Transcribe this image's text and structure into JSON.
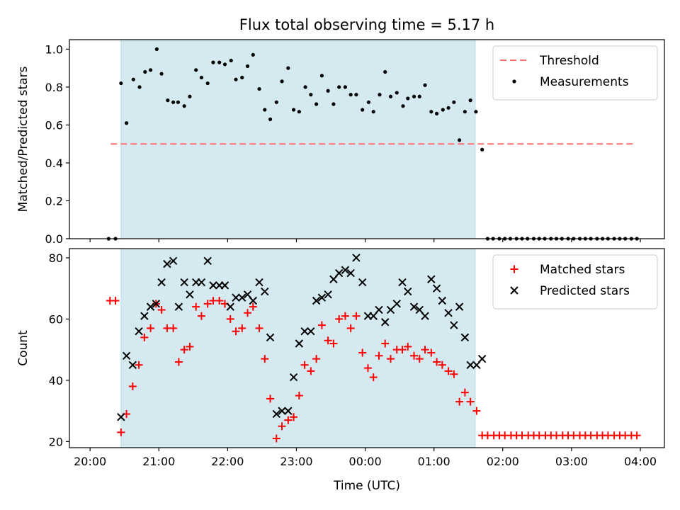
{
  "title": "Flux total observing time = 5.17 h",
  "colors": {
    "shade": "#d4eaf0",
    "threshold": "#ff7070",
    "measurements": "#000000",
    "matched": "#ff0000",
    "predicted": "#000000"
  },
  "chart_data": [
    {
      "type": "scatter",
      "ylabel": "Matched/Predicted stars",
      "xlabel": "",
      "x_unit": "hours since 20:00 UTC (axis labels are clock times)",
      "xlim": [
        -0.3,
        8.35
      ],
      "ylim": [
        0.0,
        1.05
      ],
      "y_ticks": [
        0.0,
        0.2,
        0.4,
        0.6,
        0.8,
        1.0
      ],
      "y_tick_labels": [
        "0.0",
        "0.2",
        "0.4",
        "0.6",
        "0.8",
        "1.0"
      ],
      "shaded_interval": [
        0.45,
        5.6
      ],
      "grid": false,
      "legend_position": "top-right",
      "series": [
        {
          "name": "Threshold",
          "style": "dashed-line",
          "x": [
            0.3,
            7.9
          ],
          "y": [
            0.5,
            0.5
          ]
        },
        {
          "name": "Measurements",
          "style": "dot",
          "x": [
            0.27,
            0.37,
            0.45,
            0.53,
            0.63,
            0.72,
            0.8,
            0.88,
            0.97,
            1.04,
            1.13,
            1.21,
            1.28,
            1.37,
            1.45,
            1.54,
            1.62,
            1.71,
            1.79,
            1.88,
            1.96,
            2.05,
            2.12,
            2.21,
            2.29,
            2.37,
            2.46,
            2.54,
            2.62,
            2.71,
            2.79,
            2.88,
            2.96,
            3.04,
            3.13,
            3.21,
            3.29,
            3.37,
            3.46,
            3.54,
            3.62,
            3.71,
            3.79,
            3.87,
            3.96,
            4.05,
            4.12,
            4.21,
            4.29,
            4.37,
            4.46,
            4.55,
            4.62,
            4.71,
            4.79,
            4.87,
            4.96,
            5.04,
            5.13,
            5.21,
            5.29,
            5.37,
            5.45,
            5.53,
            5.61,
            5.7,
            5.78,
            5.86,
            5.95,
            6.03,
            6.11,
            6.2,
            6.28,
            6.36,
            6.45,
            6.53,
            6.61,
            6.7,
            6.78,
            6.86,
            6.95,
            7.03,
            7.12,
            7.2,
            7.28,
            7.37,
            7.45,
            7.53,
            7.62,
            7.7,
            7.78,
            7.87,
            7.95
          ],
          "y": [
            0.0,
            0.0,
            0.82,
            0.61,
            0.84,
            0.8,
            0.88,
            0.89,
            1.0,
            0.87,
            0.73,
            0.72,
            0.72,
            0.7,
            0.75,
            0.89,
            0.85,
            0.82,
            0.93,
            0.93,
            0.92,
            0.94,
            0.84,
            0.85,
            0.91,
            0.97,
            0.79,
            0.68,
            0.63,
            0.72,
            0.83,
            0.9,
            0.68,
            0.67,
            0.8,
            0.76,
            0.71,
            0.86,
            0.78,
            0.71,
            0.8,
            0.8,
            0.76,
            0.76,
            0.68,
            0.72,
            0.67,
            0.76,
            0.88,
            0.75,
            0.77,
            0.7,
            0.74,
            0.75,
            0.75,
            0.81,
            0.67,
            0.66,
            0.68,
            0.69,
            0.72,
            0.52,
            0.67,
            0.73,
            0.67,
            0.47,
            0.0,
            0.0,
            0.0,
            0.0,
            0.0,
            0.0,
            0.0,
            0.0,
            0.0,
            0.0,
            0.0,
            0.0,
            0.0,
            0.0,
            0.0,
            0.0,
            0.0,
            0.0,
            0.0,
            0.0,
            0.0,
            0.0,
            0.0,
            0.0,
            0.0,
            0.0,
            0.0
          ]
        }
      ]
    },
    {
      "type": "scatter",
      "ylabel": "Count",
      "xlabel": "Time (UTC)",
      "x_unit": "hours since 20:00 UTC (axis labels are clock times)",
      "xlim": [
        -0.3,
        8.35
      ],
      "ylim": [
        18,
        83
      ],
      "y_ticks": [
        20,
        40,
        60,
        80
      ],
      "y_tick_labels": [
        "20",
        "40",
        "60",
        "80"
      ],
      "x_ticks": [
        0,
        1,
        2,
        3,
        4,
        5,
        6,
        7,
        8
      ],
      "x_tick_labels": [
        "20:00",
        "21:00",
        "22:00",
        "23:00",
        "00:00",
        "01:00",
        "02:00",
        "03:00",
        "04:00"
      ],
      "shaded_interval": [
        0.45,
        5.6
      ],
      "grid": false,
      "legend_position": "top-right",
      "series": [
        {
          "name": "Matched stars",
          "style": "plus",
          "x": [
            0.29,
            0.37,
            0.45,
            0.53,
            0.62,
            0.71,
            0.79,
            0.88,
            0.96,
            1.04,
            1.12,
            1.21,
            1.29,
            1.37,
            1.45,
            1.54,
            1.62,
            1.71,
            1.79,
            1.88,
            1.96,
            2.04,
            2.12,
            2.21,
            2.29,
            2.37,
            2.46,
            2.54,
            2.62,
            2.71,
            2.79,
            2.88,
            2.96,
            3.04,
            3.12,
            3.21,
            3.29,
            3.37,
            3.46,
            3.54,
            3.62,
            3.71,
            3.79,
            3.87,
            3.96,
            4.04,
            4.12,
            4.2,
            4.29,
            4.37,
            4.46,
            4.54,
            4.62,
            4.71,
            4.79,
            4.87,
            4.96,
            5.04,
            5.12,
            5.21,
            5.29,
            5.37,
            5.45,
            5.53,
            5.62,
            5.7,
            5.78,
            5.87,
            5.95,
            6.03,
            6.12,
            6.2,
            6.28,
            6.37,
            6.45,
            6.53,
            6.62,
            6.7,
            6.78,
            6.87,
            6.95,
            7.03,
            7.12,
            7.2,
            7.28,
            7.37,
            7.45,
            7.53,
            7.62,
            7.7,
            7.78,
            7.87,
            7.95
          ],
          "y": [
            66,
            66,
            23,
            29,
            38,
            45,
            54,
            57,
            65,
            63,
            57,
            57,
            46,
            50,
            51,
            64,
            61,
            65,
            66,
            66,
            65,
            60,
            56,
            57,
            62,
            64,
            57,
            47,
            34,
            21,
            25,
            27,
            28,
            35,
            45,
            43,
            47,
            58,
            53,
            52,
            60,
            61,
            57,
            61,
            49,
            44,
            41,
            48,
            52,
            47,
            50,
            50,
            51,
            48,
            47,
            50,
            49,
            46,
            45,
            43,
            42,
            33,
            36,
            33,
            30,
            22,
            22,
            22,
            22,
            22,
            22,
            22,
            22,
            22,
            22,
            22,
            22,
            22,
            22,
            22,
            22,
            22,
            22,
            22,
            22,
            22,
            22,
            22,
            22,
            22,
            22,
            22,
            22
          ]
        },
        {
          "name": "Predicted stars",
          "style": "x",
          "x": [
            0.45,
            0.53,
            0.62,
            0.71,
            0.79,
            0.88,
            0.96,
            1.04,
            1.12,
            1.21,
            1.29,
            1.37,
            1.45,
            1.54,
            1.62,
            1.71,
            1.79,
            1.88,
            1.96,
            2.04,
            2.12,
            2.21,
            2.29,
            2.37,
            2.46,
            2.54,
            2.62,
            2.71,
            2.79,
            2.88,
            2.96,
            3.04,
            3.12,
            3.21,
            3.29,
            3.37,
            3.46,
            3.54,
            3.62,
            3.71,
            3.79,
            3.87,
            3.96,
            4.04,
            4.12,
            4.2,
            4.29,
            4.37,
            4.46,
            4.54,
            4.62,
            4.71,
            4.79,
            4.87,
            4.96,
            5.04,
            5.12,
            5.21,
            5.29,
            5.37,
            5.45,
            5.53,
            5.62,
            5.7
          ],
          "y": [
            28,
            48,
            45,
            56,
            61,
            64,
            65,
            72,
            78,
            79,
            64,
            72,
            68,
            72,
            72,
            79,
            71,
            71,
            71,
            64,
            67,
            67,
            68,
            66,
            72,
            69,
            54,
            29,
            30,
            30,
            41,
            52,
            56,
            56,
            66,
            67,
            68,
            73,
            75,
            76,
            75,
            80,
            72,
            61,
            61,
            63,
            59,
            63,
            65,
            72,
            69,
            64,
            63,
            61,
            73,
            70,
            66,
            62,
            58,
            64,
            54,
            45,
            45,
            47
          ]
        }
      ]
    }
  ]
}
